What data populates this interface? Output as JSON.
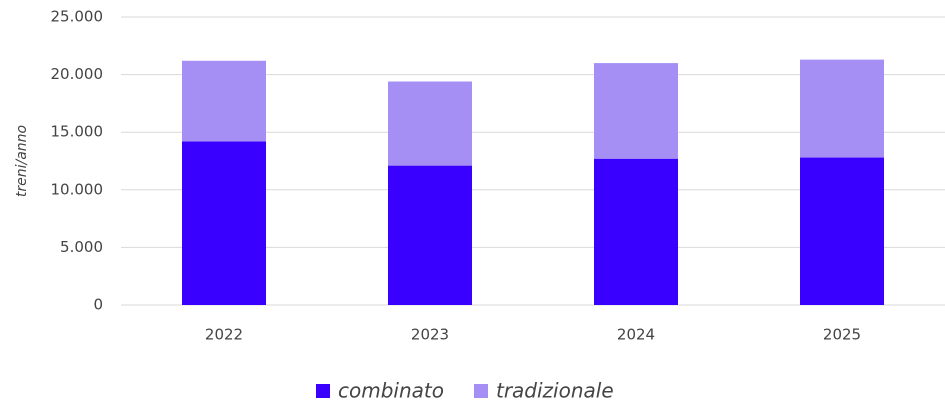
{
  "chart_data": {
    "type": "stacked_bar",
    "y_label": "treni/anno",
    "categories": [
      "2022",
      "2023",
      "2024",
      "2025"
    ],
    "series": [
      {
        "name": "combinato",
        "color": "#3a00ff",
        "values": [
          14200,
          12100,
          12700,
          12800
        ]
      },
      {
        "name": "tradizionale",
        "color": "#a58ff5",
        "values": [
          7000,
          7300,
          8300,
          8500
        ]
      }
    ],
    "ylim": [
      0,
      25000
    ],
    "yticks": [
      0,
      {
        "value": 5000,
        "label": "5.000"
      },
      {
        "value": 10000,
        "label": "10.000"
      },
      {
        "value": 15000,
        "label": "15.000"
      },
      {
        "value": 20000,
        "label": "20.000"
      },
      {
        "value": 25000,
        "label": "25.000"
      }
    ],
    "grid": true,
    "legend": "bottom"
  }
}
